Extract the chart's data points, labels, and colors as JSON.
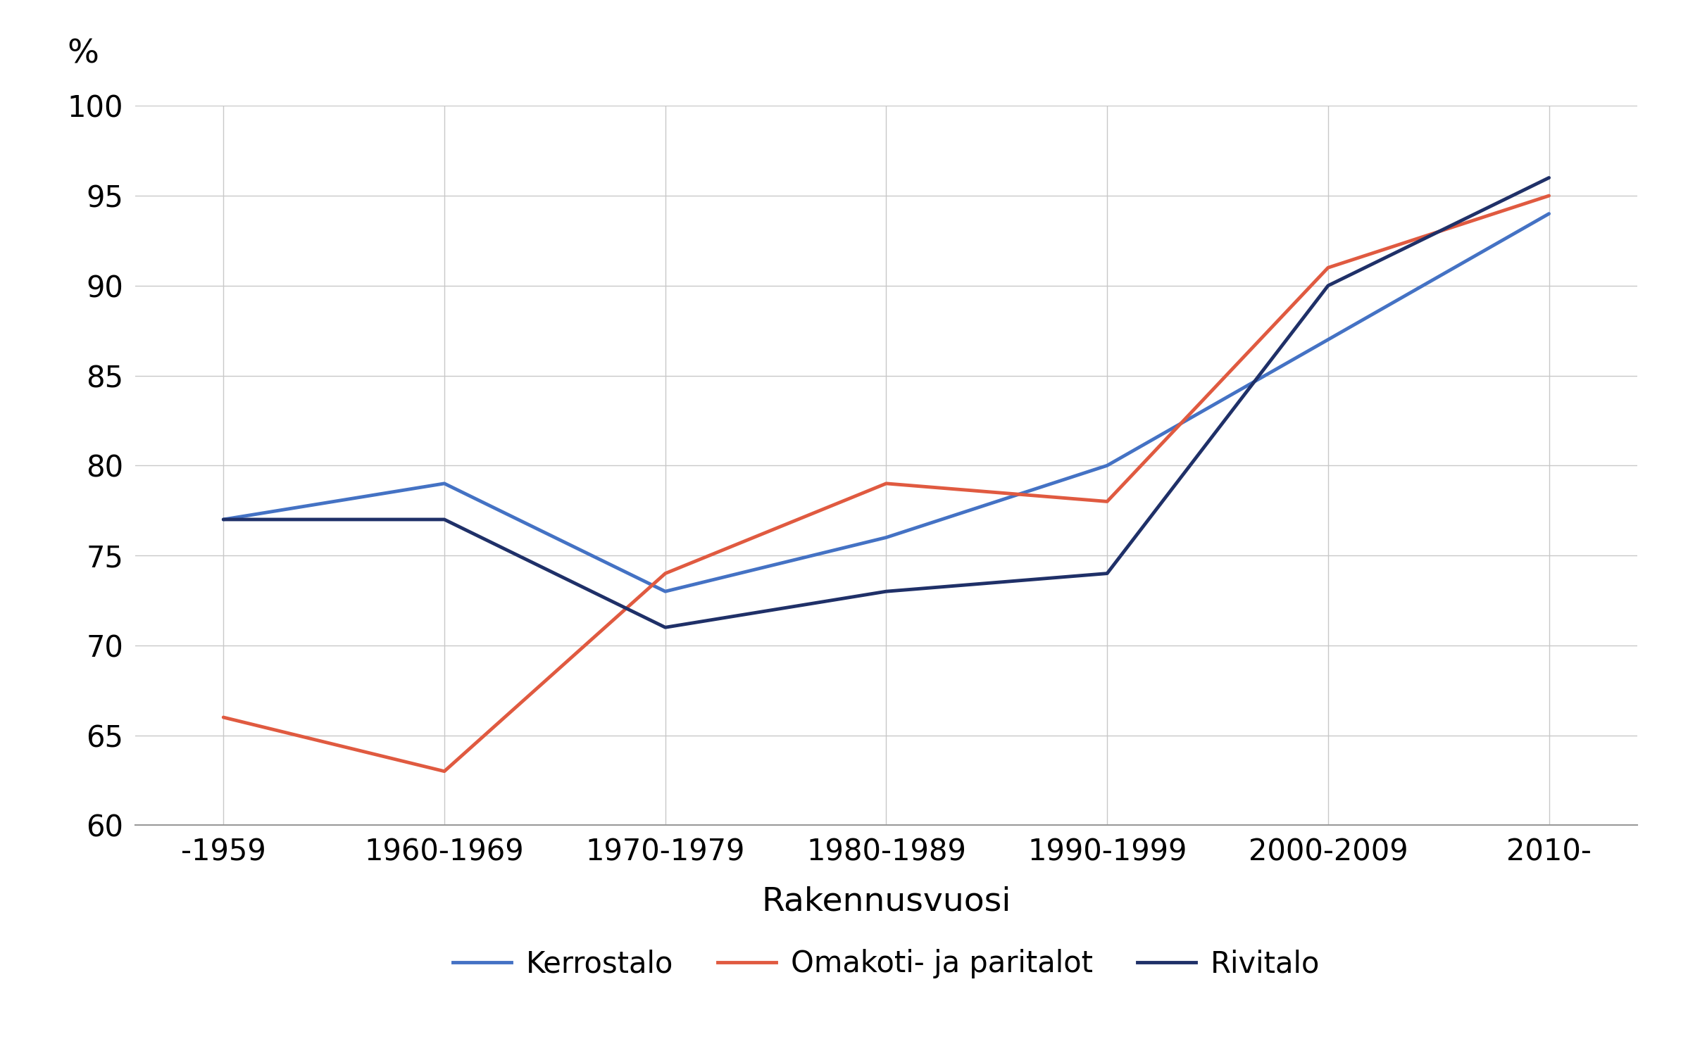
{
  "categories": [
    "-1959",
    "1960-1969",
    "1970-1979",
    "1980-1989",
    "1990-1999",
    "2000-2009",
    "2010-"
  ],
  "kerrostalo": [
    77,
    79,
    73,
    76,
    80,
    87,
    94
  ],
  "omakoti": [
    66,
    63,
    74,
    79,
    78,
    91,
    95
  ],
  "rivitalo": [
    77,
    77,
    71,
    73,
    74,
    90,
    96
  ],
  "kerrostalo_color": "#4472C4",
  "omakoti_color": "#E05A40",
  "rivitalo_color": "#1F3068",
  "xlabel": "Rakennusvuosi",
  "ylabel": "%",
  "ylim_min": 60,
  "ylim_max": 100,
  "yticks": [
    60,
    65,
    70,
    75,
    80,
    85,
    90,
    95,
    100
  ],
  "legend_labels": [
    "Kerrostalo",
    "Omakoti- ja paritalot",
    "Rivitalo"
  ],
  "background_color": "#ffffff",
  "grid_color": "#c8c8c8",
  "linewidth": 3.5,
  "tick_fontsize": 30,
  "label_fontsize": 34,
  "legend_fontsize": 30
}
